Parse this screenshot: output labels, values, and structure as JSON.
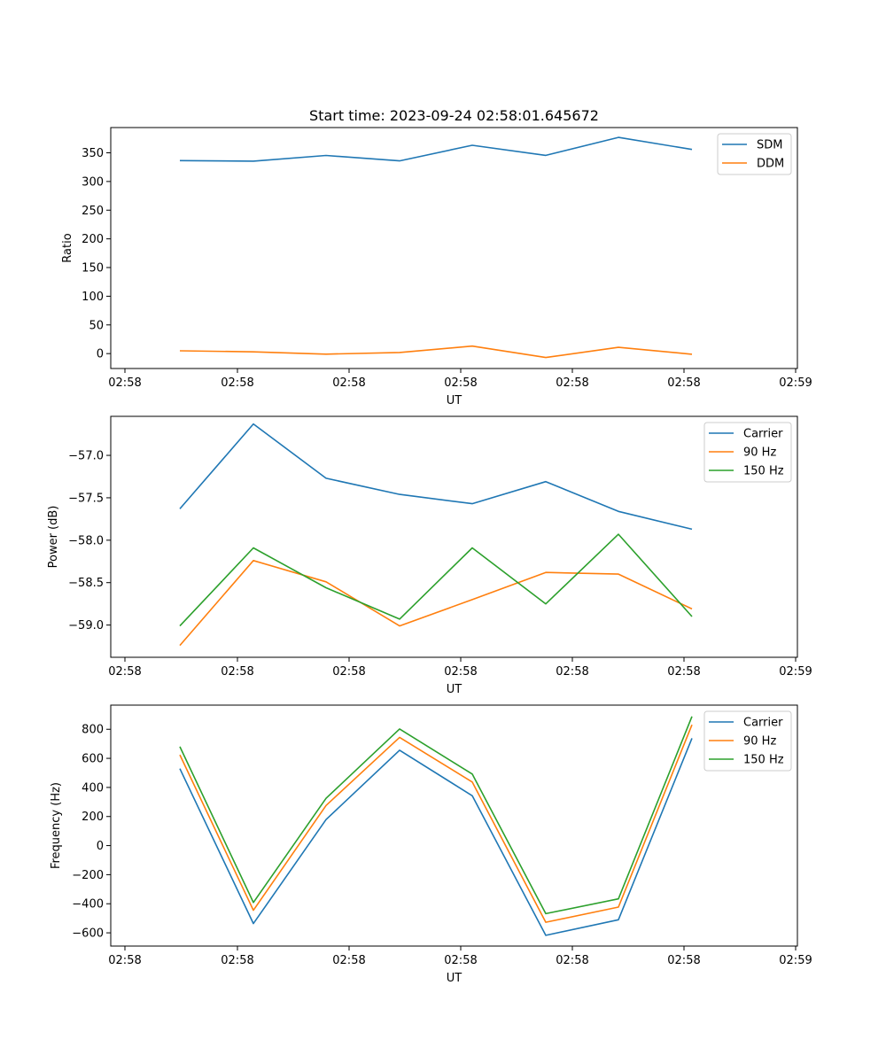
{
  "chart_data": [
    {
      "type": "line",
      "title": "Start time: 2023-09-24 02:58:01.645672",
      "xlabel": "UT",
      "ylabel": "Ratio",
      "x_tick_labels": [
        "02:58",
        "02:58",
        "02:58",
        "02:58",
        "02:58",
        "02:58",
        "02:59"
      ],
      "y_ticks": [
        0,
        50,
        100,
        150,
        200,
        250,
        300,
        350
      ],
      "ylim": [
        -26,
        394
      ],
      "legend_position": "upper right",
      "grid": false,
      "series": [
        {
          "name": "SDM",
          "color": "#1f77b4",
          "values": [
            336.4,
            335.5,
            345.4,
            335.9,
            363.1,
            345.5,
            376.8,
            355.9
          ]
        },
        {
          "name": "DDM",
          "color": "#ff7f0e",
          "values": [
            4.9,
            3.0,
            -1.0,
            2.0,
            13.1,
            -6.9,
            10.9,
            -1.1
          ]
        }
      ]
    },
    {
      "type": "line",
      "title": "",
      "xlabel": "UT",
      "ylabel": "Power (dB)",
      "x_tick_labels": [
        "02:58",
        "02:58",
        "02:58",
        "02:58",
        "02:58",
        "02:58",
        "02:59"
      ],
      "y_ticks": [
        -59.0,
        -58.5,
        -58.0,
        -57.5,
        -57.0
      ],
      "y_tick_labels": [
        "−59.0",
        "−58.5",
        "−58.0",
        "−57.5",
        "−57.0"
      ],
      "ylim": [
        -59.38,
        -56.54
      ],
      "legend_position": "upper right",
      "grid": false,
      "series": [
        {
          "name": "Carrier",
          "color": "#1f77b4",
          "values": [
            -57.63,
            -56.63,
            -57.27,
            -57.46,
            -57.57,
            -57.31,
            -57.66,
            -57.87
          ]
        },
        {
          "name": "90 Hz",
          "color": "#ff7f0e",
          "values": [
            -59.24,
            -58.24,
            -58.49,
            -59.01,
            -58.7,
            -58.38,
            -58.4,
            -58.81
          ]
        },
        {
          "name": "150 Hz",
          "color": "#2ca02c",
          "values": [
            -59.01,
            -58.09,
            -58.56,
            -58.93,
            -58.09,
            -58.75,
            -57.93,
            -58.9
          ]
        }
      ]
    },
    {
      "type": "line",
      "title": "",
      "xlabel": "UT",
      "ylabel": "Frequency (Hz)",
      "x_tick_labels": [
        "02:58",
        "02:58",
        "02:58",
        "02:58",
        "02:58",
        "02:58",
        "02:59"
      ],
      "y_ticks": [
        -600,
        -400,
        -200,
        0,
        200,
        400,
        600,
        800
      ],
      "y_tick_labels": [
        "−600",
        "−400",
        "−200",
        "0",
        "200",
        "400",
        "600",
        "800"
      ],
      "ylim": [
        -691,
        966
      ],
      "legend_position": "upper right",
      "grid": false,
      "series": [
        {
          "name": "Carrier",
          "color": "#1f77b4",
          "values": [
            529,
            -536,
            179,
            656,
            343,
            -617,
            -510,
            738
          ]
        },
        {
          "name": "90 Hz",
          "color": "#ff7f0e",
          "values": [
            624,
            -445,
            276,
            744,
            437,
            -527,
            -423,
            831
          ]
        },
        {
          "name": "150 Hz",
          "color": "#2ca02c",
          "values": [
            680,
            -391,
            325,
            802,
            492,
            -468,
            -366,
            888
          ]
        }
      ]
    }
  ]
}
